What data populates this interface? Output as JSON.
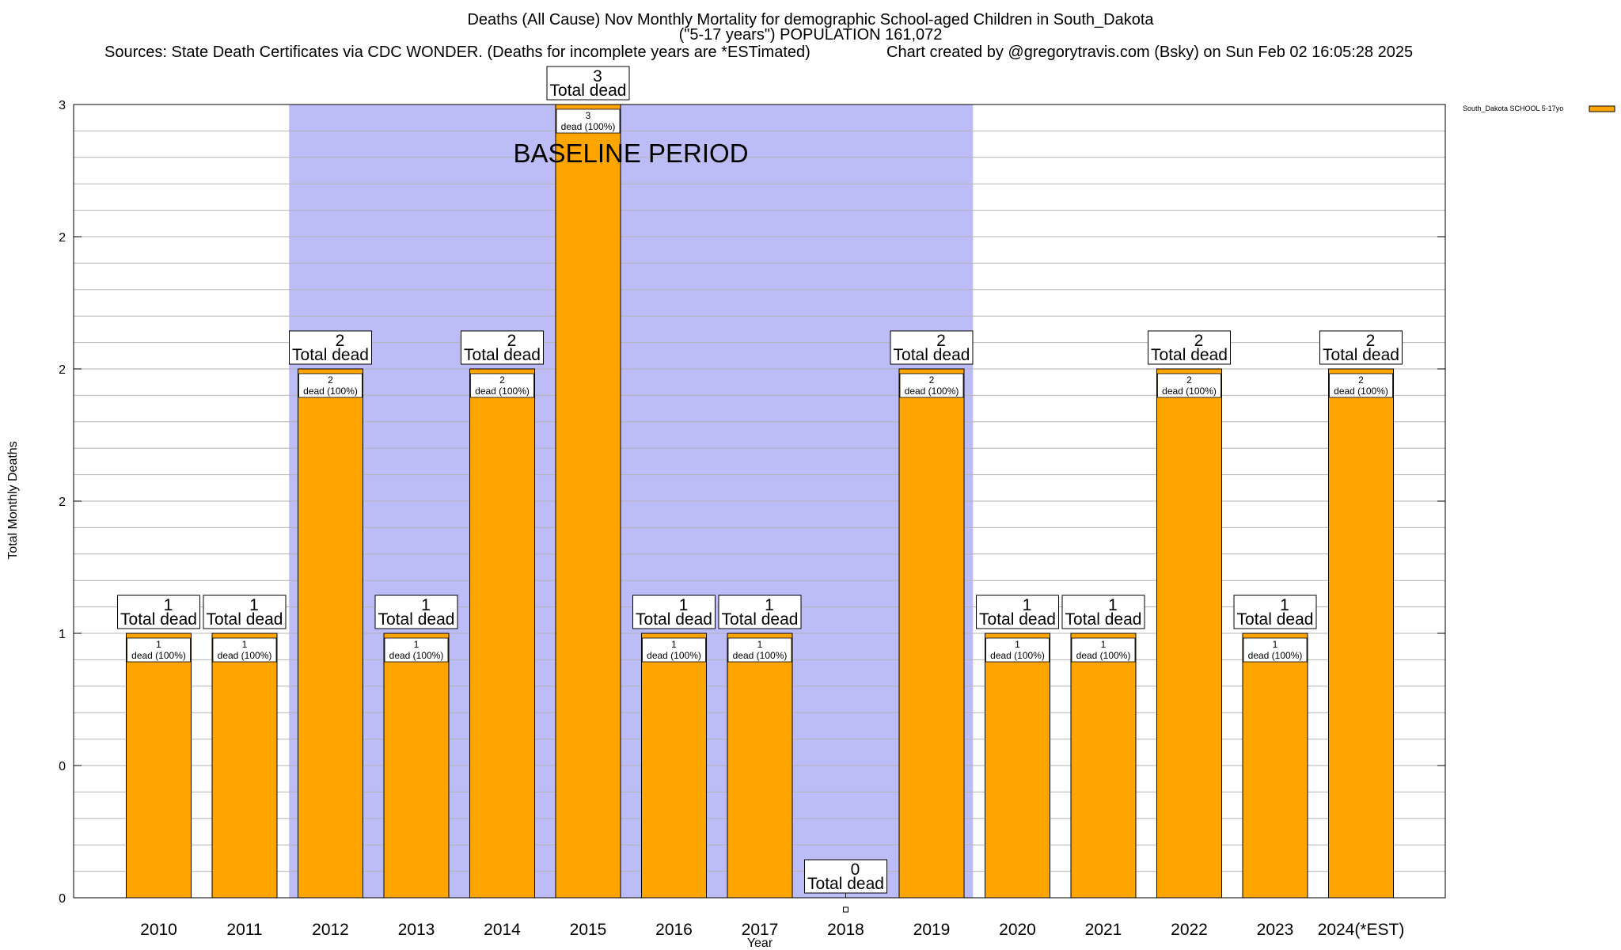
{
  "chart_data": {
    "type": "bar",
    "title_lines": [
      "Deaths (All Cause) Nov Monthly Mortality for demographic School-aged Children in South_Dakota",
      "(\"5-17 years\") POPULATION 161,072"
    ],
    "sources": "Sources: State Death Certificates via CDC WONDER. (Deaths for incomplete years are *ESTimated)",
    "credit": "Chart created by @gregorytravis.com (Bsky) on Sun Feb 02 16:05:28 2025",
    "xlabel": "Year",
    "ylabel": "Total Monthly Deaths",
    "ylim": [
      0,
      3
    ],
    "y_tick_values": [
      0,
      0.5,
      1,
      1.5,
      2,
      2.5,
      3
    ],
    "y_tick_labels": [
      "0",
      "0",
      "1",
      "2",
      "2",
      "2",
      "3"
    ],
    "categories": [
      "2010",
      "2011",
      "2012",
      "2013",
      "2014",
      "2015",
      "2016",
      "2017",
      "2018",
      "2019",
      "2020",
      "2021",
      "2022",
      "2023",
      "2024(*EST)"
    ],
    "series": [
      {
        "name": "South_Dakota SCHOOL 5-17yo",
        "color": "#ffa500",
        "values": [
          1,
          1,
          2,
          1,
          2,
          3,
          1,
          1,
          0,
          2,
          1,
          1,
          2,
          1,
          2
        ]
      }
    ],
    "total_label": "Total dead",
    "inner_label": "dead (100%)",
    "baseline": {
      "label": "BASELINE PERIOD",
      "from_category": "2012",
      "to_category": "2019",
      "color": "#bcbcf7"
    },
    "grid": true,
    "legend_position": "top-right"
  }
}
